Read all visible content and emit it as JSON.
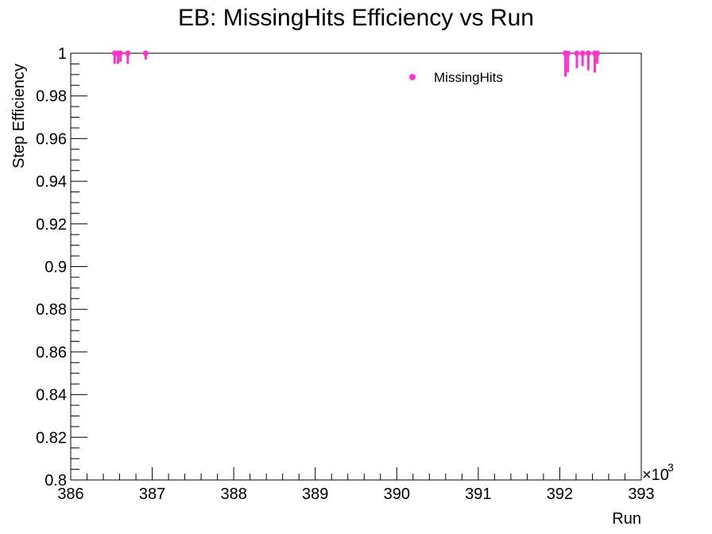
{
  "chart_data": {
    "type": "scatter",
    "title": "EB: MissingHits Efficiency vs Run",
    "xlabel": "Run",
    "ylabel": "Step Efficiency",
    "x_multiplier_label": "×10",
    "x_multiplier_exponent": "3",
    "xlim": [
      386,
      393
    ],
    "ylim": [
      0.8,
      1.0
    ],
    "x_ticks": [
      386,
      387,
      388,
      389,
      390,
      391,
      392,
      393
    ],
    "x_tick_labels": [
      "386",
      "387",
      "388",
      "389",
      "390",
      "391",
      "392",
      "393"
    ],
    "y_ticks": [
      0.8,
      0.82,
      0.84,
      0.86,
      0.88,
      0.9,
      0.92,
      0.94,
      0.96,
      0.98,
      1.0
    ],
    "y_tick_labels": [
      "0.8",
      "0.82",
      "0.84",
      "0.86",
      "0.88",
      "0.9",
      "0.92",
      "0.94",
      "0.96",
      "0.98",
      "1"
    ],
    "grid": false,
    "legend_position": "top-right",
    "color": "#ff33cc",
    "series": [
      {
        "name": "MissingHits",
        "points": [
          {
            "x": 386.54,
            "y": 1.0,
            "err_low": 0.005
          },
          {
            "x": 386.58,
            "y": 1.0,
            "err_low": 0.005
          },
          {
            "x": 386.61,
            "y": 1.0,
            "err_low": 0.004
          },
          {
            "x": 386.7,
            "y": 1.0,
            "err_low": 0.005
          },
          {
            "x": 386.92,
            "y": 1.0,
            "err_low": 0.003
          },
          {
            "x": 392.07,
            "y": 1.0,
            "err_low": 0.011
          },
          {
            "x": 392.1,
            "y": 1.0,
            "err_low": 0.009
          },
          {
            "x": 392.21,
            "y": 1.0,
            "err_low": 0.007
          },
          {
            "x": 392.28,
            "y": 1.0,
            "err_low": 0.006
          },
          {
            "x": 392.35,
            "y": 1.0,
            "err_low": 0.008
          },
          {
            "x": 392.43,
            "y": 1.0,
            "err_low": 0.009
          },
          {
            "x": 392.46,
            "y": 1.0,
            "err_low": 0.005
          }
        ]
      }
    ]
  }
}
